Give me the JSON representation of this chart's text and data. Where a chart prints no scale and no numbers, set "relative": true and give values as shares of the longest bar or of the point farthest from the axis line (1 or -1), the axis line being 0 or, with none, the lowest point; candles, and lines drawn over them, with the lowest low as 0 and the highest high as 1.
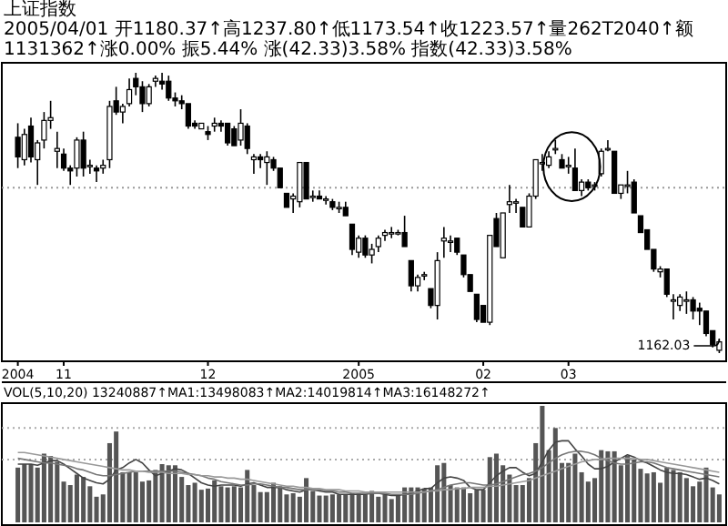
{
  "chart_data": [
    {
      "type": "candlestick",
      "title": "上证指数",
      "subtitle": "2005/04/01 开1180.37↑高1237.80↑低1173.54↑收1223.57↑量262T2040↑额1131362↑涨0.00% 振5.44% 涨(42.33)3.58% 指数(42.33)3.58%",
      "relative": true,
      "tick_labels": "x",
      "categories": [
        "2004",
        null,
        null,
        null,
        null,
        null,
        null,
        "11",
        null,
        null,
        null,
        null,
        null,
        null,
        null,
        null,
        null,
        null,
        null,
        null,
        null,
        null,
        null,
        null,
        null,
        null,
        null,
        null,
        null,
        "12",
        null,
        null,
        null,
        null,
        null,
        null,
        null,
        null,
        null,
        null,
        null,
        null,
        null,
        null,
        null,
        null,
        null,
        null,
        null,
        null,
        null,
        null,
        "2005",
        null,
        null,
        null,
        null,
        null,
        null,
        null,
        null,
        null,
        null,
        null,
        null,
        null,
        null,
        null,
        null,
        null,
        null,
        "02",
        null,
        null,
        null,
        null,
        null,
        null,
        null,
        null,
        null,
        null,
        null,
        null,
        "03",
        null,
        null,
        null,
        null,
        null,
        null,
        null,
        null,
        null,
        null,
        null,
        null,
        null,
        null,
        null,
        null,
        null,
        null,
        null,
        null,
        null,
        null,
        null
      ],
      "ohlc": [
        [
          0.77,
          0.82,
          0.66,
          0.7
        ],
        [
          0.69,
          0.8,
          0.67,
          0.78
        ],
        [
          0.81,
          0.84,
          0.68,
          0.7
        ],
        [
          0.69,
          0.76,
          0.6,
          0.75
        ],
        [
          0.76,
          0.86,
          0.73,
          0.83
        ],
        [
          0.83,
          0.9,
          0.8,
          0.84
        ],
        [
          0.72,
          0.79,
          0.66,
          0.73
        ],
        [
          0.71,
          0.73,
          0.65,
          0.66
        ],
        [
          0.66,
          0.67,
          0.6,
          0.65
        ],
        [
          0.66,
          0.77,
          0.63,
          0.76
        ],
        [
          0.76,
          0.79,
          0.63,
          0.66
        ],
        [
          0.67,
          0.69,
          0.64,
          0.67
        ],
        [
          0.66,
          0.67,
          0.61,
          0.65
        ],
        [
          0.66,
          0.69,
          0.64,
          0.67
        ],
        [
          0.69,
          0.9,
          0.66,
          0.88
        ],
        [
          0.9,
          0.95,
          0.85,
          0.86
        ],
        [
          0.86,
          0.89,
          0.82,
          0.88
        ],
        [
          0.89,
          0.98,
          0.88,
          0.94
        ],
        [
          0.98,
          1.0,
          0.92,
          0.95
        ],
        [
          0.95,
          0.97,
          0.86,
          0.89
        ],
        [
          0.89,
          0.96,
          0.88,
          0.95
        ],
        [
          0.97,
          0.99,
          0.95,
          0.98
        ],
        [
          0.97,
          1.0,
          0.94,
          0.96
        ],
        [
          0.97,
          0.99,
          0.9,
          0.91
        ],
        [
          0.91,
          0.93,
          0.88,
          0.9
        ],
        [
          0.9,
          0.92,
          0.87,
          0.89
        ],
        [
          0.89,
          0.89,
          0.8,
          0.81
        ],
        [
          0.82,
          0.83,
          0.8,
          0.81
        ],
        [
          0.8,
          0.82,
          0.8,
          0.82
        ],
        [
          0.79,
          0.81,
          0.76,
          0.78
        ],
        [
          0.81,
          0.84,
          0.79,
          0.82
        ],
        [
          0.82,
          0.83,
          0.79,
          0.81
        ],
        [
          0.82,
          0.82,
          0.74,
          0.75
        ],
        [
          0.8,
          0.81,
          0.74,
          0.74
        ],
        [
          0.76,
          0.87,
          0.74,
          0.82
        ],
        [
          0.81,
          0.82,
          0.71,
          0.73
        ],
        [
          0.69,
          0.71,
          0.64,
          0.7
        ],
        [
          0.7,
          0.71,
          0.66,
          0.69
        ],
        [
          0.68,
          0.72,
          0.6,
          0.7
        ],
        [
          0.69,
          0.7,
          0.65,
          0.66
        ],
        [
          0.66,
          0.66,
          0.59,
          0.59
        ],
        [
          0.57,
          0.57,
          0.52,
          0.52
        ],
        [
          0.55,
          0.57,
          0.5,
          0.56
        ],
        [
          0.54,
          0.68,
          0.52,
          0.68
        ],
        [
          0.68,
          0.68,
          0.55,
          0.55
        ],
        [
          0.56,
          0.58,
          0.54,
          0.56
        ],
        [
          0.56,
          0.58,
          0.55,
          0.55
        ],
        [
          0.55,
          0.56,
          0.53,
          0.55
        ],
        [
          0.54,
          0.55,
          0.51,
          0.52
        ],
        [
          0.52,
          0.54,
          0.5,
          0.52
        ],
        [
          0.52,
          0.54,
          0.49,
          0.49
        ],
        [
          0.46,
          0.46,
          0.35,
          0.37
        ],
        [
          0.36,
          0.42,
          0.34,
          0.41
        ],
        [
          0.41,
          0.42,
          0.34,
          0.35
        ],
        [
          0.35,
          0.39,
          0.32,
          0.37
        ],
        [
          0.38,
          0.42,
          0.36,
          0.41
        ],
        [
          0.42,
          0.44,
          0.4,
          0.43
        ],
        [
          0.43,
          0.45,
          0.41,
          0.43
        ],
        [
          0.43,
          0.44,
          0.42,
          0.43
        ],
        [
          0.43,
          0.49,
          0.38,
          0.38
        ],
        [
          0.33,
          0.33,
          0.22,
          0.24
        ],
        [
          0.24,
          0.28,
          0.22,
          0.27
        ],
        [
          0.28,
          0.29,
          0.26,
          0.28
        ],
        [
          0.23,
          0.23,
          0.16,
          0.17
        ],
        [
          0.17,
          0.36,
          0.12,
          0.33
        ],
        [
          0.4,
          0.45,
          0.34,
          0.41
        ],
        [
          0.4,
          0.42,
          0.36,
          0.4
        ],
        [
          0.41,
          0.41,
          0.35,
          0.36
        ],
        [
          0.35,
          0.35,
          0.27,
          0.28
        ],
        [
          0.28,
          0.28,
          0.22,
          0.22
        ],
        [
          0.21,
          0.21,
          0.11,
          0.12
        ],
        [
          0.17,
          0.17,
          0.11,
          0.11
        ],
        [
          0.11,
          0.42,
          0.1,
          0.42
        ],
        [
          0.48,
          0.5,
          0.38,
          0.38
        ],
        [
          0.34,
          0.5,
          0.34,
          0.5
        ],
        [
          0.53,
          0.6,
          0.5,
          0.54
        ],
        [
          0.54,
          0.55,
          0.5,
          0.54
        ],
        [
          0.52,
          0.52,
          0.45,
          0.45
        ],
        [
          0.45,
          0.57,
          0.45,
          0.56
        ],
        [
          0.56,
          0.69,
          0.55,
          0.69
        ],
        [
          0.68,
          0.71,
          0.65,
          0.68
        ],
        [
          0.67,
          0.72,
          0.66,
          0.7
        ],
        [
          0.73,
          0.76,
          0.71,
          0.73
        ],
        [
          0.69,
          0.71,
          0.66,
          0.66
        ],
        [
          0.67,
          0.7,
          0.64,
          0.67
        ],
        [
          0.66,
          0.73,
          0.58,
          0.58
        ],
        [
          0.58,
          0.62,
          0.56,
          0.61
        ],
        [
          0.61,
          0.62,
          0.58,
          0.59
        ],
        [
          0.6,
          0.61,
          0.58,
          0.6
        ],
        [
          0.64,
          0.73,
          0.63,
          0.72
        ],
        [
          0.73,
          0.76,
          0.72,
          0.73
        ],
        [
          0.72,
          0.72,
          0.57,
          0.57
        ],
        [
          0.57,
          0.6,
          0.55,
          0.6
        ],
        [
          0.6,
          0.65,
          0.57,
          0.6
        ],
        [
          0.61,
          0.62,
          0.5,
          0.5
        ],
        [
          0.49,
          0.49,
          0.43,
          0.43
        ],
        [
          0.44,
          0.44,
          0.37,
          0.37
        ],
        [
          0.37,
          0.37,
          0.29,
          0.3
        ],
        [
          0.29,
          0.31,
          0.27,
          0.3
        ],
        [
          0.3,
          0.3,
          0.2,
          0.21
        ],
        [
          0.19,
          0.21,
          0.12,
          0.19
        ],
        [
          0.17,
          0.21,
          0.15,
          0.2
        ],
        [
          0.19,
          0.22,
          0.14,
          0.19
        ],
        [
          0.19,
          0.2,
          0.12,
          0.15
        ],
        [
          0.16,
          0.18,
          0.1,
          0.15
        ],
        [
          0.15,
          0.15,
          0.06,
          0.07
        ],
        [
          0.08,
          0.08,
          0.02,
          0.03
        ],
        [
          0.01,
          0.05,
          0.0,
          0.04
        ]
      ],
      "ref_lines": [
        {
          "axis": "y",
          "value": 0.59,
          "color": "#999999",
          "line_style": "dotted"
        }
      ],
      "annotations": [
        "1162.03"
      ]
    },
    {
      "type": "bar",
      "title": "VOL(5,10,20) 13240887↑MA1:13498083↑MA2:14019814↑MA3:16148272↑",
      "relative": true,
      "tick_labels": false,
      "categories": [
        null,
        null,
        null,
        null,
        null,
        null,
        null,
        null,
        null,
        null,
        null,
        null,
        null,
        null,
        null,
        null,
        null,
        null,
        null,
        null,
        null,
        null,
        null,
        null,
        null,
        null,
        null,
        null,
        null,
        null,
        null,
        null,
        null,
        null,
        null,
        null,
        null,
        null,
        null,
        null,
        null,
        null,
        null,
        null,
        null,
        null,
        null,
        null,
        null,
        null,
        null,
        null,
        null,
        null,
        null,
        null,
        null,
        null,
        null,
        null,
        null,
        null,
        null,
        null,
        null,
        null,
        null,
        null,
        null,
        null,
        null,
        null,
        null,
        null,
        null,
        null,
        null,
        null,
        null,
        null,
        null,
        null,
        null,
        null,
        null,
        null,
        null,
        null,
        null,
        null,
        null,
        null,
        null,
        null,
        null,
        null,
        null,
        null,
        null,
        null,
        null,
        null,
        null,
        null,
        null,
        null,
        null,
        null
      ],
      "series": [
        {
          "type": "bar",
          "color": "#555555",
          "values": [
            0.47,
            0.5,
            0.5,
            0.47,
            0.59,
            0.57,
            0.52,
            0.35,
            0.32,
            0.41,
            0.39,
            0.31,
            0.22,
            0.24,
            0.68,
            0.78,
            0.43,
            0.43,
            0.43,
            0.35,
            0.36,
            0.45,
            0.5,
            0.49,
            0.49,
            0.39,
            0.32,
            0.34,
            0.28,
            0.29,
            0.36,
            0.31,
            0.3,
            0.31,
            0.3,
            0.45,
            0.32,
            0.26,
            0.26,
            0.34,
            0.31,
            0.24,
            0.25,
            0.22,
            0.38,
            0.27,
            0.23,
            0.23,
            0.24,
            0.24,
            0.24,
            0.25,
            0.25,
            0.24,
            0.27,
            0.22,
            0.24,
            0.2,
            0.24,
            0.3,
            0.3,
            0.3,
            0.29,
            0.3,
            0.49,
            0.51,
            0.32,
            0.3,
            0.3,
            0.25,
            0.28,
            0.28,
            0.56,
            0.59,
            0.49,
            0.41,
            0.32,
            0.32,
            0.38,
            0.68,
            1,
            0.62,
            0.81,
            0.51,
            0.51,
            0.59,
            0.43,
            0.35,
            0.38,
            0.62,
            0.61,
            0.61,
            0.49,
            0.57,
            0.54,
            0.46,
            0.42,
            0.43,
            0.34,
            0.47,
            0.45,
            0.43,
            0.38,
            0.31,
            0.35,
            0.47,
            0.3,
            0.24
          ]
        },
        {
          "type": "line",
          "color": "#444444",
          "values": [
            0.5,
            0.5,
            0.5,
            0.49,
            0.51,
            0.53,
            0.53,
            0.5,
            0.46,
            0.42,
            0.38,
            0.36,
            0.34,
            0.33,
            0.37,
            0.45,
            0.47,
            0.51,
            0.54,
            0.51,
            0.45,
            0.4,
            0.42,
            0.44,
            0.46,
            0.45,
            0.42,
            0.38,
            0.34,
            0.32,
            0.31,
            0.32,
            0.32,
            0.32,
            0.31,
            0.33,
            0.34,
            0.32,
            0.3,
            0.3,
            0.3,
            0.28,
            0.27,
            0.26,
            0.28,
            0.28,
            0.27,
            0.26,
            0.26,
            0.24,
            0.24,
            0.24,
            0.24,
            0.24,
            0.25,
            0.25,
            0.24,
            0.23,
            0.23,
            0.24,
            0.25,
            0.27,
            0.29,
            0.29,
            0.34,
            0.38,
            0.39,
            0.38,
            0.36,
            0.3,
            0.28,
            0.28,
            0.34,
            0.4,
            0.44,
            0.47,
            0.47,
            0.43,
            0.4,
            0.42,
            0.52,
            0.62,
            0.69,
            0.7,
            0.7,
            0.63,
            0.57,
            0.5,
            0.46,
            0.46,
            0.48,
            0.52,
            0.55,
            0.58,
            0.56,
            0.53,
            0.51,
            0.48,
            0.45,
            0.43,
            0.42,
            0.42,
            0.41,
            0.39,
            0.37,
            0.38,
            0.36,
            0.33
          ]
        },
        {
          "type": "line",
          "color": "#777777",
          "values": [
            0.55,
            0.54,
            0.53,
            0.52,
            0.51,
            0.51,
            0.5,
            0.49,
            0.48,
            0.46,
            0.45,
            0.43,
            0.41,
            0.4,
            0.4,
            0.41,
            0.42,
            0.43,
            0.44,
            0.44,
            0.44,
            0.44,
            0.44,
            0.44,
            0.44,
            0.43,
            0.42,
            0.41,
            0.4,
            0.38,
            0.37,
            0.35,
            0.34,
            0.33,
            0.32,
            0.32,
            0.33,
            0.33,
            0.32,
            0.31,
            0.3,
            0.3,
            0.29,
            0.28,
            0.28,
            0.28,
            0.28,
            0.27,
            0.27,
            0.26,
            0.26,
            0.25,
            0.25,
            0.25,
            0.25,
            0.25,
            0.25,
            0.24,
            0.24,
            0.24,
            0.24,
            0.25,
            0.26,
            0.27,
            0.28,
            0.3,
            0.32,
            0.33,
            0.34,
            0.34,
            0.33,
            0.32,
            0.32,
            0.33,
            0.35,
            0.37,
            0.39,
            0.41,
            0.42,
            0.44,
            0.47,
            0.51,
            0.55,
            0.58,
            0.6,
            0.61,
            0.61,
            0.6,
            0.58,
            0.55,
            0.53,
            0.51,
            0.5,
            0.5,
            0.51,
            0.52,
            0.52,
            0.51,
            0.49,
            0.47,
            0.46,
            0.45,
            0.44,
            0.43,
            0.42,
            0.41,
            0.4,
            0.39
          ]
        },
        {
          "type": "line",
          "color": "#999999",
          "values": [
            0.6,
            0.6,
            0.59,
            0.58,
            0.57,
            0.56,
            0.55,
            0.54,
            0.53,
            0.52,
            0.51,
            0.5,
            0.49,
            0.48,
            0.47,
            0.46,
            0.45,
            0.45,
            0.44,
            0.44,
            0.43,
            0.43,
            0.43,
            0.42,
            0.42,
            0.42,
            0.41,
            0.41,
            0.4,
            0.4,
            0.39,
            0.39,
            0.38,
            0.38,
            0.37,
            0.37,
            0.36,
            0.35,
            0.34,
            0.33,
            0.32,
            0.31,
            0.31,
            0.3,
            0.3,
            0.29,
            0.29,
            0.28,
            0.28,
            0.28,
            0.27,
            0.27,
            0.27,
            0.26,
            0.26,
            0.26,
            0.26,
            0.26,
            0.26,
            0.26,
            0.26,
            0.26,
            0.26,
            0.27,
            0.27,
            0.28,
            0.28,
            0.29,
            0.29,
            0.3,
            0.3,
            0.3,
            0.31,
            0.31,
            0.32,
            0.33,
            0.34,
            0.35,
            0.36,
            0.38,
            0.4,
            0.42,
            0.44,
            0.46,
            0.48,
            0.5,
            0.52,
            0.53,
            0.54,
            0.54,
            0.55,
            0.55,
            0.55,
            0.55,
            0.55,
            0.54,
            0.54,
            0.53,
            0.52,
            0.51,
            0.5,
            0.49,
            0.48,
            0.47,
            0.46,
            0.45,
            0.44,
            0.43
          ]
        }
      ],
      "ref_lines": [
        {
          "axis": "y",
          "value": 0.81,
          "color": "#aaaaaa",
          "line_style": "dotted"
        },
        {
          "axis": "y",
          "value": 0.54,
          "color": "#aaaaaa",
          "line_style": "dotted"
        }
      ]
    }
  ]
}
